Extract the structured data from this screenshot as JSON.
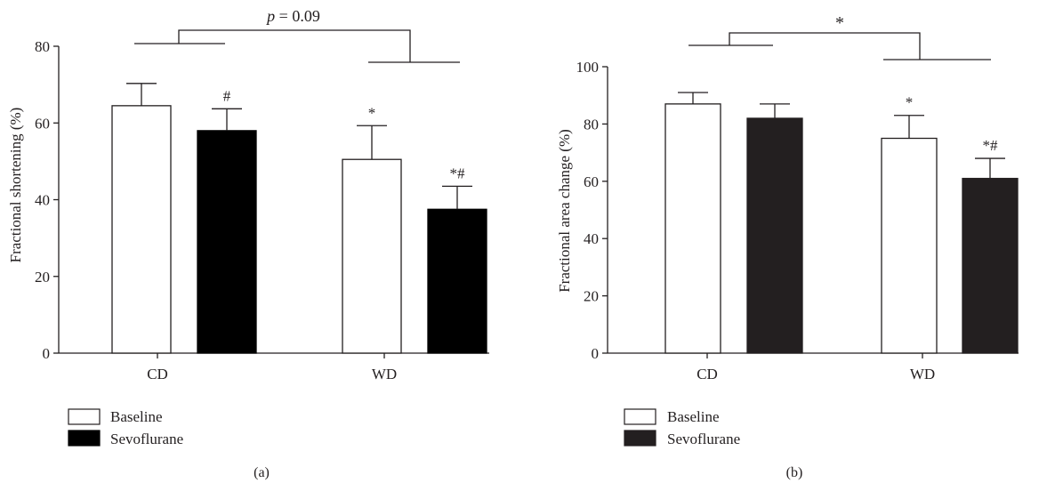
{
  "chart_data": [
    {
      "type": "bar",
      "panel_label": "(a)",
      "ylabel": "Fractional shortening (%)",
      "categories": [
        "CD",
        "WD"
      ],
      "ylim": [
        0,
        80
      ],
      "yticks": [
        0,
        20,
        40,
        60,
        80
      ],
      "series": [
        {
          "name": "Baseline",
          "color": "#ffffff",
          "values": [
            64.5,
            50.5
          ],
          "errors": [
            5.8,
            8.8
          ]
        },
        {
          "name": "Sevoflurane",
          "color": "#000000",
          "values": [
            58,
            37.5
          ],
          "errors": [
            5.7,
            6
          ]
        }
      ],
      "annotations": [
        {
          "category": "CD",
          "series": "Sevoflurane",
          "text": "#"
        },
        {
          "category": "WD",
          "series": "Baseline",
          "text": "*"
        },
        {
          "category": "WD",
          "series": "Sevoflurane",
          "text": "*#"
        }
      ],
      "comparison_label": {
        "italic": "p",
        "rest": " = 0.09"
      },
      "legend_placement": "bottom-left",
      "grid": false
    },
    {
      "type": "bar",
      "panel_label": "(b)",
      "ylabel": "Fractional area change (%)",
      "categories": [
        "CD",
        "WD"
      ],
      "ylim": [
        0,
        100
      ],
      "yticks": [
        0,
        20,
        40,
        60,
        80,
        100
      ],
      "series": [
        {
          "name": "Baseline",
          "color": "#ffffff",
          "values": [
            87,
            75
          ],
          "errors": [
            4,
            8
          ]
        },
        {
          "name": "Sevoflurane",
          "color": "#231f20",
          "values": [
            82,
            61
          ],
          "errors": [
            5,
            7
          ]
        }
      ],
      "annotations": [
        {
          "category": "WD",
          "series": "Baseline",
          "text": "*"
        },
        {
          "category": "WD",
          "series": "Sevoflurane",
          "text": "*#"
        }
      ],
      "comparison_label": {
        "italic": "",
        "rest": "*"
      },
      "legend_placement": "bottom-left",
      "grid": false
    }
  ]
}
